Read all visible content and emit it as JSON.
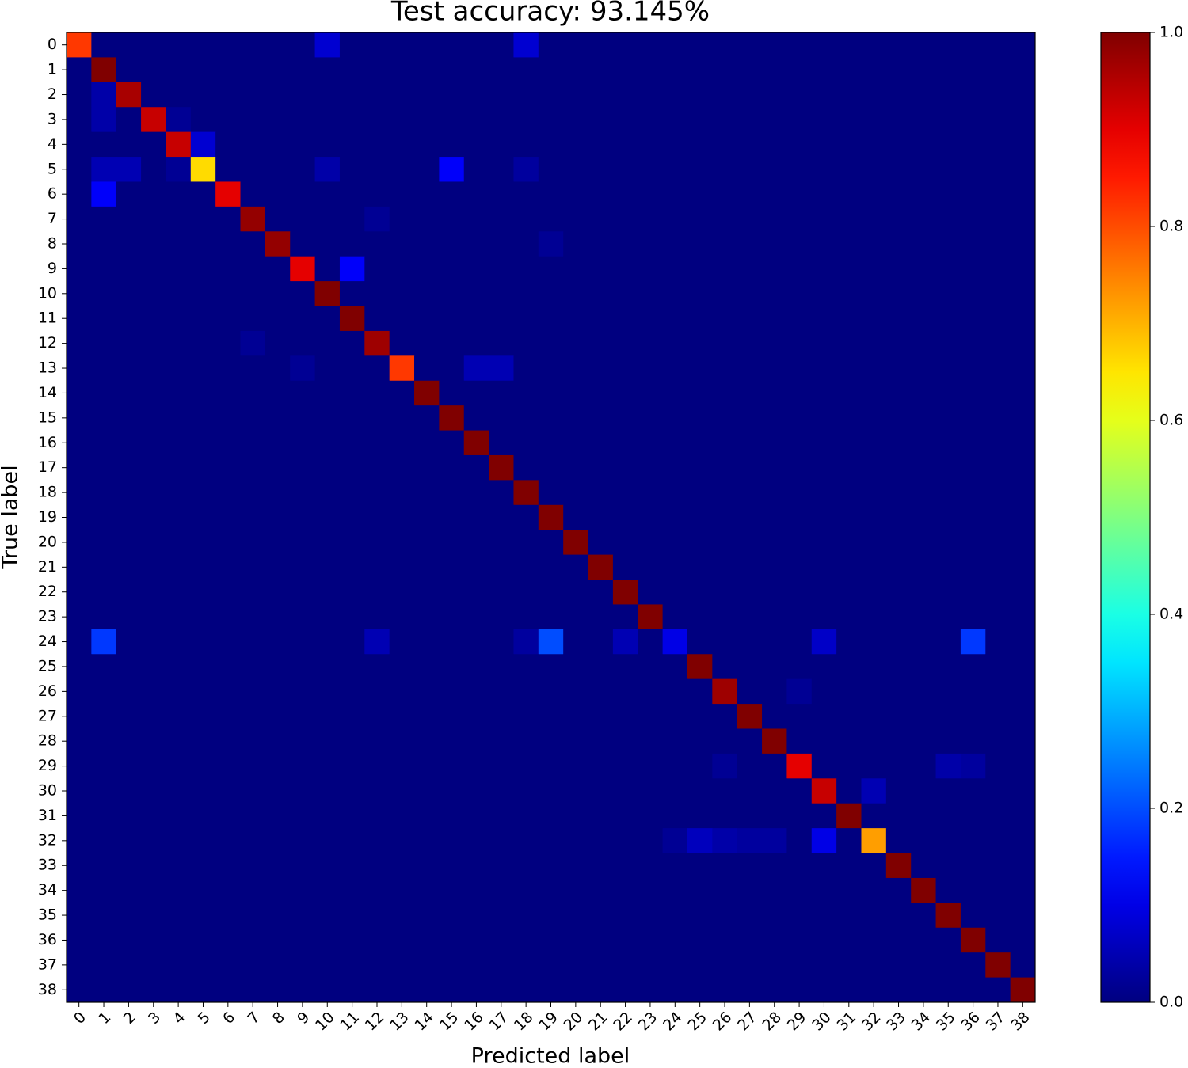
{
  "chart_data": {
    "type": "heatmap",
    "title": "Test accuracy: 93.145%",
    "x_label": "Predicted label",
    "y_label": "True label",
    "colormap": "jet",
    "categories": [
      "0",
      "1",
      "2",
      "3",
      "4",
      "5",
      "6",
      "7",
      "8",
      "9",
      "10",
      "11",
      "12",
      "13",
      "14",
      "15",
      "16",
      "17",
      "18",
      "19",
      "20",
      "21",
      "22",
      "23",
      "24",
      "25",
      "26",
      "27",
      "28",
      "29",
      "30",
      "31",
      "32",
      "33",
      "34",
      "35",
      "36",
      "37",
      "38"
    ],
    "clim": [
      0,
      1
    ],
    "cticks": [
      {
        "value": 0,
        "label": "0.0"
      },
      {
        "value": 0.2,
        "label": "0.2"
      },
      {
        "value": 0.4,
        "label": "0.4"
      },
      {
        "value": 0.6,
        "label": "0.6"
      },
      {
        "value": 0.8,
        "label": "0.8"
      },
      {
        "value": 1,
        "label": "1.0"
      }
    ],
    "values": [
      [
        0.82,
        0,
        0,
        0,
        0,
        0,
        0,
        0,
        0,
        0,
        0.08,
        0,
        0,
        0,
        0,
        0,
        0,
        0,
        0.08,
        0,
        0,
        0,
        0,
        0,
        0,
        0,
        0,
        0,
        0,
        0,
        0,
        0,
        0,
        0,
        0,
        0,
        0,
        0,
        0
      ],
      [
        0,
        1,
        0,
        0,
        0,
        0,
        0,
        0,
        0,
        0,
        0,
        0,
        0,
        0,
        0,
        0,
        0,
        0,
        0,
        0,
        0,
        0,
        0,
        0,
        0,
        0,
        0,
        0,
        0,
        0,
        0,
        0,
        0,
        0,
        0,
        0,
        0,
        0,
        0
      ],
      [
        0,
        0.04,
        0.96,
        0,
        0,
        0,
        0,
        0,
        0,
        0,
        0,
        0,
        0,
        0,
        0,
        0,
        0,
        0,
        0,
        0,
        0,
        0,
        0,
        0,
        0,
        0,
        0,
        0,
        0,
        0,
        0,
        0,
        0,
        0,
        0,
        0,
        0,
        0,
        0
      ],
      [
        0,
        0.04,
        0,
        0.93,
        0.02,
        0,
        0,
        0,
        0,
        0,
        0,
        0,
        0,
        0,
        0,
        0,
        0,
        0,
        0,
        0,
        0,
        0,
        0,
        0,
        0,
        0,
        0,
        0,
        0,
        0,
        0,
        0,
        0,
        0,
        0,
        0,
        0,
        0,
        0
      ],
      [
        0,
        0,
        0,
        0,
        0.93,
        0.08,
        0,
        0,
        0,
        0,
        0,
        0,
        0,
        0,
        0,
        0,
        0,
        0,
        0,
        0,
        0,
        0,
        0,
        0,
        0,
        0,
        0,
        0,
        0,
        0,
        0,
        0,
        0,
        0,
        0,
        0,
        0,
        0,
        0
      ],
      [
        0,
        0.05,
        0.05,
        0,
        0.02,
        0.66,
        0,
        0,
        0,
        0,
        0.04,
        0,
        0,
        0,
        0,
        0.12,
        0,
        0,
        0.03,
        0,
        0,
        0,
        0,
        0,
        0,
        0,
        0,
        0,
        0,
        0,
        0,
        0,
        0,
        0,
        0,
        0,
        0,
        0,
        0
      ],
      [
        0,
        0.12,
        0,
        0,
        0,
        0,
        0.9,
        0,
        0,
        0,
        0,
        0,
        0,
        0,
        0,
        0,
        0,
        0,
        0,
        0,
        0,
        0,
        0,
        0,
        0,
        0,
        0,
        0,
        0,
        0,
        0,
        0,
        0,
        0,
        0,
        0,
        0,
        0,
        0
      ],
      [
        0,
        0,
        0,
        0,
        0,
        0,
        0,
        0.98,
        0,
        0,
        0,
        0,
        0.02,
        0,
        0,
        0,
        0,
        0,
        0,
        0,
        0,
        0,
        0,
        0,
        0,
        0,
        0,
        0,
        0,
        0,
        0,
        0,
        0,
        0,
        0,
        0,
        0,
        0,
        0
      ],
      [
        0,
        0,
        0,
        0,
        0,
        0,
        0,
        0,
        0.98,
        0,
        0,
        0,
        0,
        0,
        0,
        0,
        0,
        0,
        0,
        0.02,
        0,
        0,
        0,
        0,
        0,
        0,
        0,
        0,
        0,
        0,
        0,
        0,
        0,
        0,
        0,
        0,
        0,
        0,
        0
      ],
      [
        0,
        0,
        0,
        0,
        0,
        0,
        0,
        0,
        0,
        0.9,
        0,
        0.12,
        0,
        0,
        0,
        0,
        0,
        0,
        0,
        0,
        0,
        0,
        0,
        0,
        0,
        0,
        0,
        0,
        0,
        0,
        0,
        0,
        0,
        0,
        0,
        0,
        0,
        0,
        0
      ],
      [
        0,
        0,
        0,
        0,
        0,
        0,
        0,
        0,
        0,
        0,
        1,
        0,
        0,
        0,
        0,
        0,
        0,
        0,
        0,
        0,
        0,
        0,
        0,
        0,
        0,
        0,
        0,
        0,
        0,
        0,
        0,
        0,
        0,
        0,
        0,
        0,
        0,
        0,
        0
      ],
      [
        0,
        0,
        0,
        0,
        0,
        0,
        0,
        0,
        0,
        0,
        0,
        1,
        0,
        0,
        0,
        0,
        0,
        0,
        0,
        0,
        0,
        0,
        0,
        0,
        0,
        0,
        0,
        0,
        0,
        0,
        0,
        0,
        0,
        0,
        0,
        0,
        0,
        0,
        0
      ],
      [
        0,
        0,
        0,
        0,
        0,
        0,
        0,
        0.02,
        0,
        0,
        0,
        0,
        0.97,
        0,
        0,
        0,
        0,
        0,
        0,
        0,
        0,
        0,
        0,
        0,
        0,
        0,
        0,
        0,
        0,
        0,
        0,
        0,
        0,
        0,
        0,
        0,
        0,
        0,
        0
      ],
      [
        0,
        0,
        0,
        0,
        0,
        0,
        0,
        0,
        0,
        0.02,
        0,
        0,
        0,
        0.82,
        0,
        0,
        0.05,
        0.05,
        0,
        0,
        0,
        0,
        0,
        0,
        0,
        0,
        0,
        0,
        0,
        0,
        0,
        0,
        0,
        0,
        0,
        0,
        0,
        0,
        0
      ],
      [
        0,
        0,
        0,
        0,
        0,
        0,
        0,
        0,
        0,
        0,
        0,
        0,
        0,
        0,
        1,
        0,
        0,
        0,
        0,
        0,
        0,
        0,
        0,
        0,
        0,
        0,
        0,
        0,
        0,
        0,
        0,
        0,
        0,
        0,
        0,
        0,
        0,
        0,
        0
      ],
      [
        0,
        0,
        0,
        0,
        0,
        0,
        0,
        0,
        0,
        0,
        0,
        0,
        0,
        0,
        0,
        1,
        0,
        0,
        0,
        0,
        0,
        0,
        0,
        0,
        0,
        0,
        0,
        0,
        0,
        0,
        0,
        0,
        0,
        0,
        0,
        0,
        0,
        0,
        0
      ],
      [
        0,
        0,
        0,
        0,
        0,
        0,
        0,
        0,
        0,
        0,
        0,
        0,
        0,
        0,
        0,
        0,
        1,
        0,
        0,
        0,
        0,
        0,
        0,
        0,
        0,
        0,
        0,
        0,
        0,
        0,
        0,
        0,
        0,
        0,
        0,
        0,
        0,
        0,
        0
      ],
      [
        0,
        0,
        0,
        0,
        0,
        0,
        0,
        0,
        0,
        0,
        0,
        0,
        0,
        0,
        0,
        0,
        0,
        1,
        0,
        0,
        0,
        0,
        0,
        0,
        0,
        0,
        0,
        0,
        0,
        0,
        0,
        0,
        0,
        0,
        0,
        0,
        0,
        0,
        0
      ],
      [
        0,
        0,
        0,
        0,
        0,
        0,
        0,
        0,
        0,
        0,
        0,
        0,
        0,
        0,
        0,
        0,
        0,
        0,
        1,
        0,
        0,
        0,
        0,
        0,
        0,
        0,
        0,
        0,
        0,
        0,
        0,
        0,
        0,
        0,
        0,
        0,
        0,
        0,
        0
      ],
      [
        0,
        0,
        0,
        0,
        0,
        0,
        0,
        0,
        0,
        0,
        0,
        0,
        0,
        0,
        0,
        0,
        0,
        0,
        0,
        1,
        0,
        0,
        0,
        0,
        0,
        0,
        0,
        0,
        0,
        0,
        0,
        0,
        0,
        0,
        0,
        0,
        0,
        0,
        0
      ],
      [
        0,
        0,
        0,
        0,
        0,
        0,
        0,
        0,
        0,
        0,
        0,
        0,
        0,
        0,
        0,
        0,
        0,
        0,
        0,
        0,
        1,
        0,
        0,
        0,
        0,
        0,
        0,
        0,
        0,
        0,
        0,
        0,
        0,
        0,
        0,
        0,
        0,
        0,
        0
      ],
      [
        0,
        0,
        0,
        0,
        0,
        0,
        0,
        0,
        0,
        0,
        0,
        0,
        0,
        0,
        0,
        0,
        0,
        0,
        0,
        0,
        0,
        1,
        0,
        0,
        0,
        0,
        0,
        0,
        0,
        0,
        0,
        0,
        0,
        0,
        0,
        0,
        0,
        0,
        0
      ],
      [
        0,
        0,
        0,
        0,
        0,
        0,
        0,
        0,
        0,
        0,
        0,
        0,
        0,
        0,
        0,
        0,
        0,
        0,
        0,
        0,
        0,
        0,
        1,
        0,
        0,
        0,
        0,
        0,
        0,
        0,
        0,
        0,
        0,
        0,
        0,
        0,
        0,
        0,
        0
      ],
      [
        0,
        0,
        0,
        0,
        0,
        0,
        0,
        0,
        0,
        0,
        0,
        0,
        0,
        0,
        0,
        0,
        0,
        0,
        0,
        0,
        0,
        0,
        0,
        1,
        0,
        0,
        0,
        0,
        0,
        0,
        0,
        0,
        0,
        0,
        0,
        0,
        0,
        0,
        0
      ],
      [
        0,
        0.18,
        0,
        0,
        0,
        0,
        0,
        0,
        0,
        0,
        0,
        0,
        0.05,
        0,
        0,
        0,
        0,
        0,
        0.03,
        0.2,
        0,
        0,
        0.05,
        0,
        0.1,
        0,
        0,
        0,
        0,
        0,
        0.07,
        0,
        0,
        0,
        0,
        0,
        0.18,
        0,
        0
      ],
      [
        0,
        0,
        0,
        0,
        0,
        0,
        0,
        0,
        0,
        0,
        0,
        0,
        0,
        0,
        0,
        0,
        0,
        0,
        0,
        0,
        0,
        0,
        0,
        0,
        0,
        1,
        0,
        0,
        0,
        0,
        0,
        0,
        0,
        0,
        0,
        0,
        0,
        0,
        0
      ],
      [
        0,
        0,
        0,
        0,
        0,
        0,
        0,
        0,
        0,
        0,
        0,
        0,
        0,
        0,
        0,
        0,
        0,
        0,
        0,
        0,
        0,
        0,
        0,
        0,
        0,
        0,
        0.97,
        0,
        0,
        0.02,
        0,
        0,
        0,
        0,
        0,
        0,
        0,
        0,
        0
      ],
      [
        0,
        0,
        0,
        0,
        0,
        0,
        0,
        0,
        0,
        0,
        0,
        0,
        0,
        0,
        0,
        0,
        0,
        0,
        0,
        0,
        0,
        0,
        0,
        0,
        0,
        0,
        0,
        1,
        0,
        0,
        0,
        0,
        0,
        0,
        0,
        0,
        0,
        0,
        0
      ],
      [
        0,
        0,
        0,
        0,
        0,
        0,
        0,
        0,
        0,
        0,
        0,
        0,
        0,
        0,
        0,
        0,
        0,
        0,
        0,
        0,
        0,
        0,
        0,
        0,
        0,
        0,
        0,
        0,
        1,
        0,
        0,
        0,
        0,
        0,
        0,
        0,
        0,
        0,
        0
      ],
      [
        0,
        0,
        0,
        0,
        0,
        0,
        0,
        0,
        0,
        0,
        0,
        0,
        0,
        0,
        0,
        0,
        0,
        0,
        0,
        0,
        0,
        0,
        0,
        0,
        0,
        0,
        0.02,
        0,
        0,
        0.9,
        0,
        0,
        0,
        0,
        0,
        0.04,
        0.03,
        0,
        0
      ],
      [
        0,
        0,
        0,
        0,
        0,
        0,
        0,
        0,
        0,
        0,
        0,
        0,
        0,
        0,
        0,
        0,
        0,
        0,
        0,
        0,
        0,
        0,
        0,
        0,
        0,
        0,
        0,
        0,
        0,
        0,
        0.93,
        0,
        0.05,
        0,
        0,
        0,
        0,
        0,
        0
      ],
      [
        0,
        0,
        0,
        0,
        0,
        0,
        0,
        0,
        0,
        0,
        0,
        0,
        0,
        0,
        0,
        0,
        0,
        0,
        0,
        0,
        0,
        0,
        0,
        0,
        0,
        0,
        0,
        0,
        0,
        0,
        0,
        1,
        0,
        0,
        0,
        0,
        0,
        0,
        0
      ],
      [
        0,
        0,
        0,
        0,
        0,
        0,
        0,
        0,
        0,
        0,
        0,
        0,
        0,
        0,
        0,
        0,
        0,
        0,
        0,
        0,
        0,
        0,
        0,
        0,
        0.02,
        0.06,
        0.04,
        0.03,
        0.03,
        0,
        0.1,
        0,
        0.72,
        0,
        0,
        0,
        0,
        0,
        0
      ],
      [
        0,
        0,
        0,
        0,
        0,
        0,
        0,
        0,
        0,
        0,
        0,
        0,
        0,
        0,
        0,
        0,
        0,
        0,
        0,
        0,
        0,
        0,
        0,
        0,
        0,
        0,
        0,
        0,
        0,
        0,
        0,
        0,
        0,
        1,
        0,
        0,
        0,
        0,
        0
      ],
      [
        0,
        0,
        0,
        0,
        0,
        0,
        0,
        0,
        0,
        0,
        0,
        0,
        0,
        0,
        0,
        0,
        0,
        0,
        0,
        0,
        0,
        0,
        0,
        0,
        0,
        0,
        0,
        0,
        0,
        0,
        0,
        0,
        0,
        0,
        1,
        0,
        0,
        0,
        0
      ],
      [
        0,
        0,
        0,
        0,
        0,
        0,
        0,
        0,
        0,
        0,
        0,
        0,
        0,
        0,
        0,
        0,
        0,
        0,
        0,
        0,
        0,
        0,
        0,
        0,
        0,
        0,
        0,
        0,
        0,
        0,
        0,
        0,
        0,
        0,
        0,
        1,
        0,
        0,
        0
      ],
      [
        0,
        0,
        0,
        0,
        0,
        0,
        0,
        0,
        0,
        0,
        0,
        0,
        0,
        0,
        0,
        0,
        0,
        0,
        0,
        0,
        0,
        0,
        0,
        0,
        0,
        0,
        0,
        0,
        0,
        0,
        0,
        0,
        0,
        0,
        0,
        0,
        1,
        0,
        0
      ],
      [
        0,
        0,
        0,
        0,
        0,
        0,
        0,
        0,
        0,
        0,
        0,
        0,
        0,
        0,
        0,
        0,
        0,
        0,
        0,
        0,
        0,
        0,
        0,
        0,
        0,
        0,
        0,
        0,
        0,
        0,
        0,
        0,
        0,
        0,
        0,
        0,
        0,
        1,
        0
      ],
      [
        0,
        0,
        0,
        0,
        0,
        0,
        0,
        0,
        0,
        0,
        0,
        0,
        0,
        0,
        0,
        0,
        0,
        0,
        0,
        0,
        0,
        0,
        0,
        0,
        0,
        0,
        0,
        0,
        0,
        0,
        0,
        0,
        0,
        0,
        0,
        0,
        0,
        0,
        1
      ]
    ]
  }
}
